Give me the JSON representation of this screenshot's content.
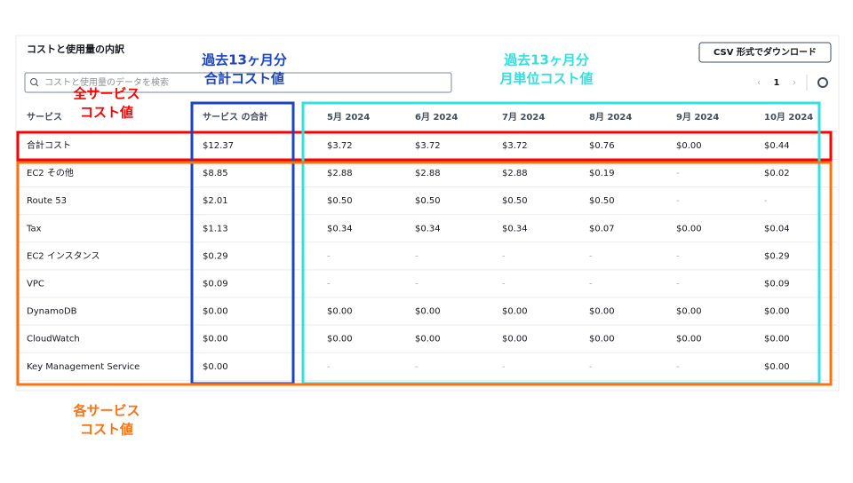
{
  "panel": {
    "title": "コストと使用量の内訳",
    "search_placeholder": "コストと使用量のデータを検索",
    "download_button": "CSV 形式でダウンロード",
    "page": "1"
  },
  "table": {
    "headers": [
      "サービス",
      "サービス の合計",
      "5月 2024",
      "6月 2024",
      "7月 2024",
      "8月 2024",
      "9月 2024",
      "10月 2024"
    ],
    "rows": [
      [
        "合計コスト",
        "$12.37",
        "$3.72",
        "$3.72",
        "$3.72",
        "$0.76",
        "$0.00",
        "$0.44"
      ],
      [
        "EC2 その他",
        "$8.85",
        "$2.88",
        "$2.88",
        "$2.88",
        "$0.19",
        "-",
        "$0.02"
      ],
      [
        "Route 53",
        "$2.01",
        "$0.50",
        "$0.50",
        "$0.50",
        "$0.50",
        "-",
        "-"
      ],
      [
        "Tax",
        "$1.13",
        "$0.34",
        "$0.34",
        "$0.34",
        "$0.07",
        "$0.00",
        "$0.04"
      ],
      [
        "EC2 インスタンス",
        "$0.29",
        "-",
        "-",
        "-",
        "-",
        "-",
        "$0.29"
      ],
      [
        "VPC",
        "$0.09",
        "-",
        "-",
        "-",
        "-",
        "-",
        "$0.09"
      ],
      [
        "DynamoDB",
        "$0.00",
        "$0.00",
        "$0.00",
        "$0.00",
        "$0.00",
        "$0.00",
        "$0.00"
      ],
      [
        "CloudWatch",
        "$0.00",
        "$0.00",
        "$0.00",
        "$0.00",
        "$0.00",
        "$0.00",
        "$0.00"
      ],
      [
        "Key Management Service",
        "$0.00",
        "-",
        "-",
        "-",
        "-",
        "-",
        "$0.00"
      ]
    ]
  },
  "annotations": [
    {
      "lines": [
        "全サービス",
        "コスト値"
      ],
      "color": "#ff0000"
    },
    {
      "lines": [
        "過去13ヶ月分",
        "合計コスト値"
      ],
      "color": "#1a44c0"
    },
    {
      "lines": [
        "過去13ヶ月分",
        "月単位コスト値"
      ],
      "color": "#33e0e0"
    },
    {
      "lines": [
        "各サービス",
        "コスト値"
      ],
      "color": "#ff7010"
    }
  ]
}
